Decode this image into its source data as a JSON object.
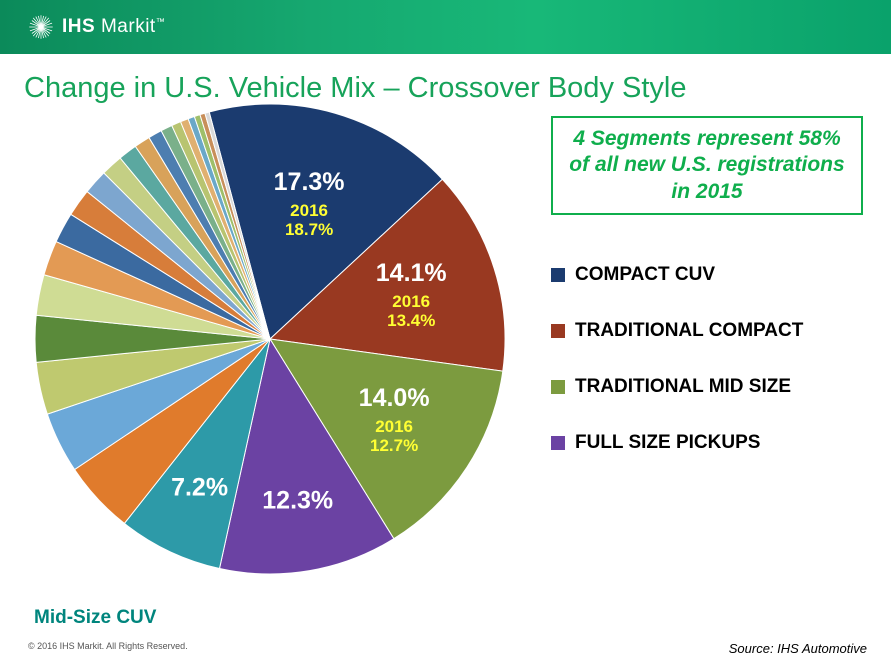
{
  "header": {
    "brand_bold": "IHS",
    "brand_light": " Markit",
    "trademark": "™",
    "bar_gradient_from": "#0b8a5a",
    "bar_gradient_to": "#0aa26b"
  },
  "title": "Change in U.S. Vehicle Mix – Crossover Body Style",
  "title_color": "#17a35a",
  "chart": {
    "type": "pie",
    "radius": 235,
    "start_angle_deg": -105,
    "label_percent_color": "#ffffff",
    "label_percent_fontsize": 25,
    "label_sub_color": "#ffff33",
    "label_sub_fontsize": 17,
    "slices": [
      {
        "name": "COMPACT CUV",
        "value": 17.3,
        "color": "#1b3b6f",
        "label_pct": "17.3%",
        "sub_year": "2016",
        "sub_pct": "18.7%",
        "label_r": 0.6
      },
      {
        "name": "TRADITIONAL COMPACT",
        "value": 14.1,
        "color": "#993921",
        "label_pct": "14.1%",
        "sub_year": "2016",
        "sub_pct": "13.4%",
        "label_r": 0.63
      },
      {
        "name": "TRADITIONAL MID SIZE",
        "value": 14.0,
        "color": "#7c9b3f",
        "label_pct": "14.0%",
        "sub_year": "2016",
        "sub_pct": "12.7%",
        "label_r": 0.63
      },
      {
        "name": "FULL SIZE PICKUPS",
        "value": 12.3,
        "color": "#6b42a3",
        "label_pct": "12.3%",
        "label_r": 0.7
      },
      {
        "name": "Mid-Size CUV",
        "value": 7.2,
        "color": "#2d9aa8",
        "label_pct": "7.2%",
        "label_r": 0.7
      },
      {
        "value": 5.0,
        "color": "#e07b2c"
      },
      {
        "value": 4.2,
        "color": "#6ba8d8"
      },
      {
        "value": 3.6,
        "color": "#bfc96f"
      },
      {
        "value": 3.2,
        "color": "#5a8a3a"
      },
      {
        "value": 2.8,
        "color": "#cfdc94"
      },
      {
        "value": 2.4,
        "color": "#e39a54"
      },
      {
        "value": 2.1,
        "color": "#3b6aa0"
      },
      {
        "value": 1.9,
        "color": "#d77d3a"
      },
      {
        "value": 1.7,
        "color": "#7da6cf"
      },
      {
        "value": 1.5,
        "color": "#c4cf84"
      },
      {
        "value": 1.3,
        "color": "#5ba8a0"
      },
      {
        "value": 1.1,
        "color": "#d8a25a"
      },
      {
        "value": 0.95,
        "color": "#4d7eb0"
      },
      {
        "value": 0.8,
        "color": "#7ab08a"
      },
      {
        "value": 0.65,
        "color": "#b8c470"
      },
      {
        "value": 0.55,
        "color": "#e0b070"
      },
      {
        "value": 0.45,
        "color": "#6aa8c8"
      },
      {
        "value": 0.4,
        "color": "#9fbf6a"
      },
      {
        "value": 0.35,
        "color": "#c88f5a"
      },
      {
        "value": 0.3,
        "color": "#d9d9d9"
      }
    ]
  },
  "mid_cuv_label": "Mid-Size CUV",
  "mid_cuv_color": "#00857d",
  "callout": {
    "text": "4 Segments represent 58% of all new U.S. registrations in 2015",
    "border_color": "#0fae4c",
    "text_color": "#0fae4c"
  },
  "legend": {
    "items": [
      {
        "label": "COMPACT CUV",
        "color": "#1b3b6f"
      },
      {
        "label": "TRADITIONAL COMPACT",
        "color": "#993921"
      },
      {
        "label": "TRADITIONAL MID SIZE",
        "color": "#7c9b3f"
      },
      {
        "label": "FULL SIZE PICKUPS",
        "color": "#6b42a3"
      }
    ]
  },
  "footer": {
    "copyright": "© 2016 IHS Markit. All Rights Reserved.",
    "source": "Source: IHS Automotive"
  }
}
